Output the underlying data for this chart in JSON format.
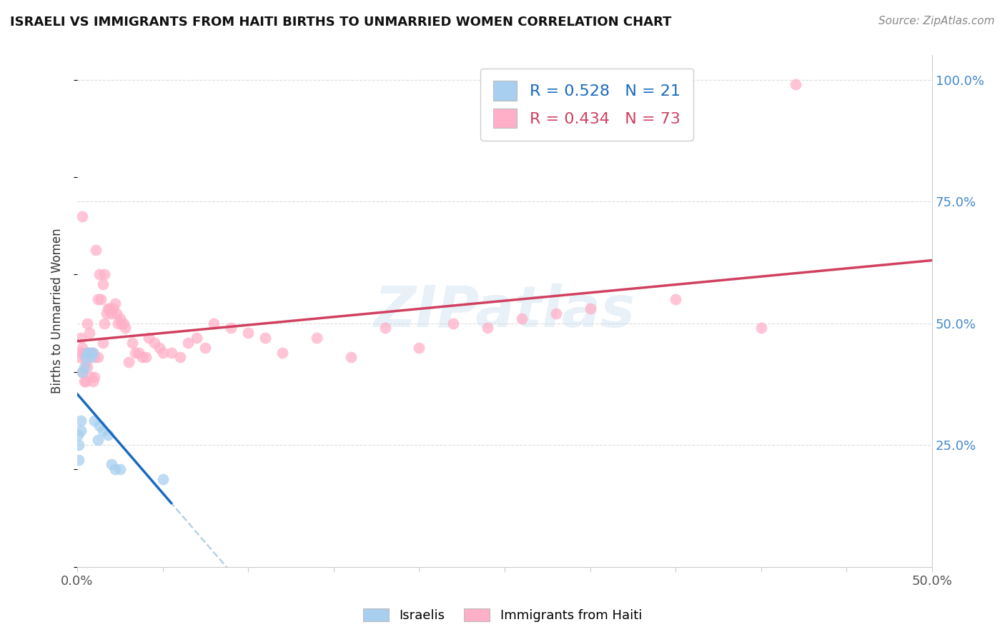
{
  "title": "ISRAELI VS IMMIGRANTS FROM HAITI BIRTHS TO UNMARRIED WOMEN CORRELATION CHART",
  "source": "Source: ZipAtlas.com",
  "ylabel": "Births to Unmarried Women",
  "xlim": [
    0.0,
    0.5
  ],
  "ylim": [
    0.0,
    1.05
  ],
  "xticklabels": [
    "0.0%",
    "",
    "",
    "",
    "",
    "",
    "",
    "",
    "",
    "",
    "50.0%"
  ],
  "yticks_right": [
    0.25,
    0.5,
    0.75,
    1.0
  ],
  "ytick_right_labels": [
    "25.0%",
    "50.0%",
    "75.0%",
    "100.0%"
  ],
  "R_israeli": 0.528,
  "N_israeli": 21,
  "R_haiti": 0.434,
  "N_haiti": 73,
  "color_israeli": "#a8cff0",
  "color_haiti": "#ffb0c8",
  "color_line_israeli": "#1a6abf",
  "color_line_haiti": "#d04060",
  "color_dashed": "#b0cce0",
  "watermark": "ZIPatlas",
  "israeli_x": [
    0.0005,
    0.001,
    0.001,
    0.002,
    0.002,
    0.003,
    0.004,
    0.005,
    0.006,
    0.007,
    0.008,
    0.009,
    0.01,
    0.012,
    0.013,
    0.015,
    0.018,
    0.02,
    0.022,
    0.025,
    0.05
  ],
  "israeli_y": [
    0.27,
    0.22,
    0.25,
    0.28,
    0.3,
    0.4,
    0.41,
    0.43,
    0.44,
    0.44,
    0.43,
    0.44,
    0.3,
    0.26,
    0.29,
    0.28,
    0.27,
    0.21,
    0.2,
    0.2,
    0.18
  ],
  "haiti_x": [
    0.001,
    0.002,
    0.002,
    0.003,
    0.003,
    0.004,
    0.004,
    0.005,
    0.005,
    0.006,
    0.006,
    0.007,
    0.007,
    0.008,
    0.008,
    0.009,
    0.009,
    0.01,
    0.01,
    0.011,
    0.012,
    0.012,
    0.013,
    0.014,
    0.015,
    0.015,
    0.016,
    0.016,
    0.017,
    0.018,
    0.019,
    0.02,
    0.021,
    0.022,
    0.023,
    0.024,
    0.025,
    0.026,
    0.027,
    0.028,
    0.03,
    0.032,
    0.034,
    0.036,
    0.038,
    0.04,
    0.042,
    0.045,
    0.048,
    0.05,
    0.055,
    0.06,
    0.065,
    0.07,
    0.075,
    0.08,
    0.09,
    0.1,
    0.11,
    0.12,
    0.14,
    0.16,
    0.18,
    0.2,
    0.22,
    0.24,
    0.26,
    0.28,
    0.3,
    0.35,
    0.4,
    0.42,
    0.003
  ],
  "haiti_y": [
    0.43,
    0.44,
    0.47,
    0.45,
    0.4,
    0.44,
    0.38,
    0.42,
    0.38,
    0.41,
    0.5,
    0.44,
    0.48,
    0.44,
    0.39,
    0.44,
    0.38,
    0.43,
    0.39,
    0.65,
    0.55,
    0.43,
    0.6,
    0.55,
    0.58,
    0.46,
    0.6,
    0.5,
    0.52,
    0.53,
    0.53,
    0.52,
    0.53,
    0.54,
    0.52,
    0.5,
    0.51,
    0.5,
    0.5,
    0.49,
    0.42,
    0.46,
    0.44,
    0.44,
    0.43,
    0.43,
    0.47,
    0.46,
    0.45,
    0.44,
    0.44,
    0.43,
    0.46,
    0.47,
    0.45,
    0.5,
    0.49,
    0.48,
    0.47,
    0.44,
    0.47,
    0.43,
    0.49,
    0.45,
    0.5,
    0.49,
    0.51,
    0.52,
    0.53,
    0.55,
    0.49,
    0.99,
    0.72
  ],
  "background_color": "#ffffff",
  "grid_color": "#dddddd"
}
